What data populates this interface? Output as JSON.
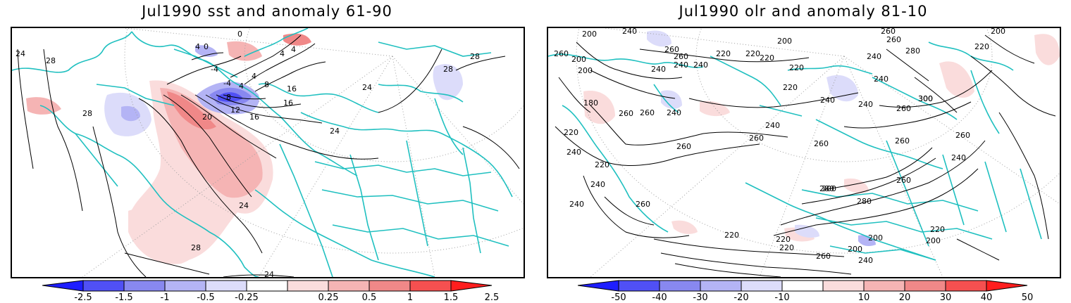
{
  "panels": [
    {
      "title": "Jul1990 sst and anomaly 61-90",
      "contour_labels": [
        "24",
        "28",
        "28",
        "28",
        "28",
        "24",
        "24",
        "20",
        "16",
        "16",
        "12",
        "8",
        "8",
        "4",
        "4",
        "4",
        "0",
        "0",
        "4",
        "-4",
        "-4",
        "4",
        "16",
        "24",
        "28",
        "24"
      ],
      "colorbar": {
        "labels": [
          "-2.5",
          "-1.5",
          "-1",
          "-0.5",
          "-0.25",
          "0.25",
          "0.5",
          "1",
          "1.5",
          "2.5"
        ],
        "colors": [
          "#1e1eff",
          "#5050f5",
          "#8888f0",
          "#b4b4f5",
          "#dcdcfa",
          "#ffffff",
          "#fadcdc",
          "#f5b4b4",
          "#f08888",
          "#f55050",
          "#ff1e1e"
        ]
      }
    },
    {
      "title": "Jul1990 olr and anomaly 81-10",
      "contour_labels": [
        "200",
        "240",
        "260",
        "260",
        "260",
        "220",
        "200",
        "200",
        "240",
        "220",
        "220",
        "240",
        "240",
        "200",
        "220",
        "220",
        "240",
        "260",
        "260",
        "280",
        "240",
        "300",
        "200",
        "220",
        "180",
        "260",
        "260",
        "240",
        "240",
        "240",
        "260",
        "260",
        "220",
        "240",
        "260",
        "240",
        "260",
        "220",
        "260",
        "300",
        "280",
        "280",
        "300",
        "260",
        "240",
        "260",
        "240",
        "260",
        "220",
        "200",
        "220",
        "220",
        "200",
        "200",
        "240",
        "220",
        "260",
        "240"
      ],
      "colorbar": {
        "labels": [
          "-50",
          "-40",
          "-30",
          "-20",
          "-10",
          "10",
          "20",
          "30",
          "40",
          "50"
        ],
        "colors": [
          "#1e1eff",
          "#5050f5",
          "#8888f0",
          "#b4b4f5",
          "#dcdcfa",
          "#ffffff",
          "#fadcdc",
          "#f5b4b4",
          "#f08888",
          "#f55050",
          "#ff1e1e"
        ]
      }
    }
  ],
  "colors": {
    "coastline": "#20c0c0",
    "contour": "#000000",
    "graticule": "#a0a0a0"
  }
}
